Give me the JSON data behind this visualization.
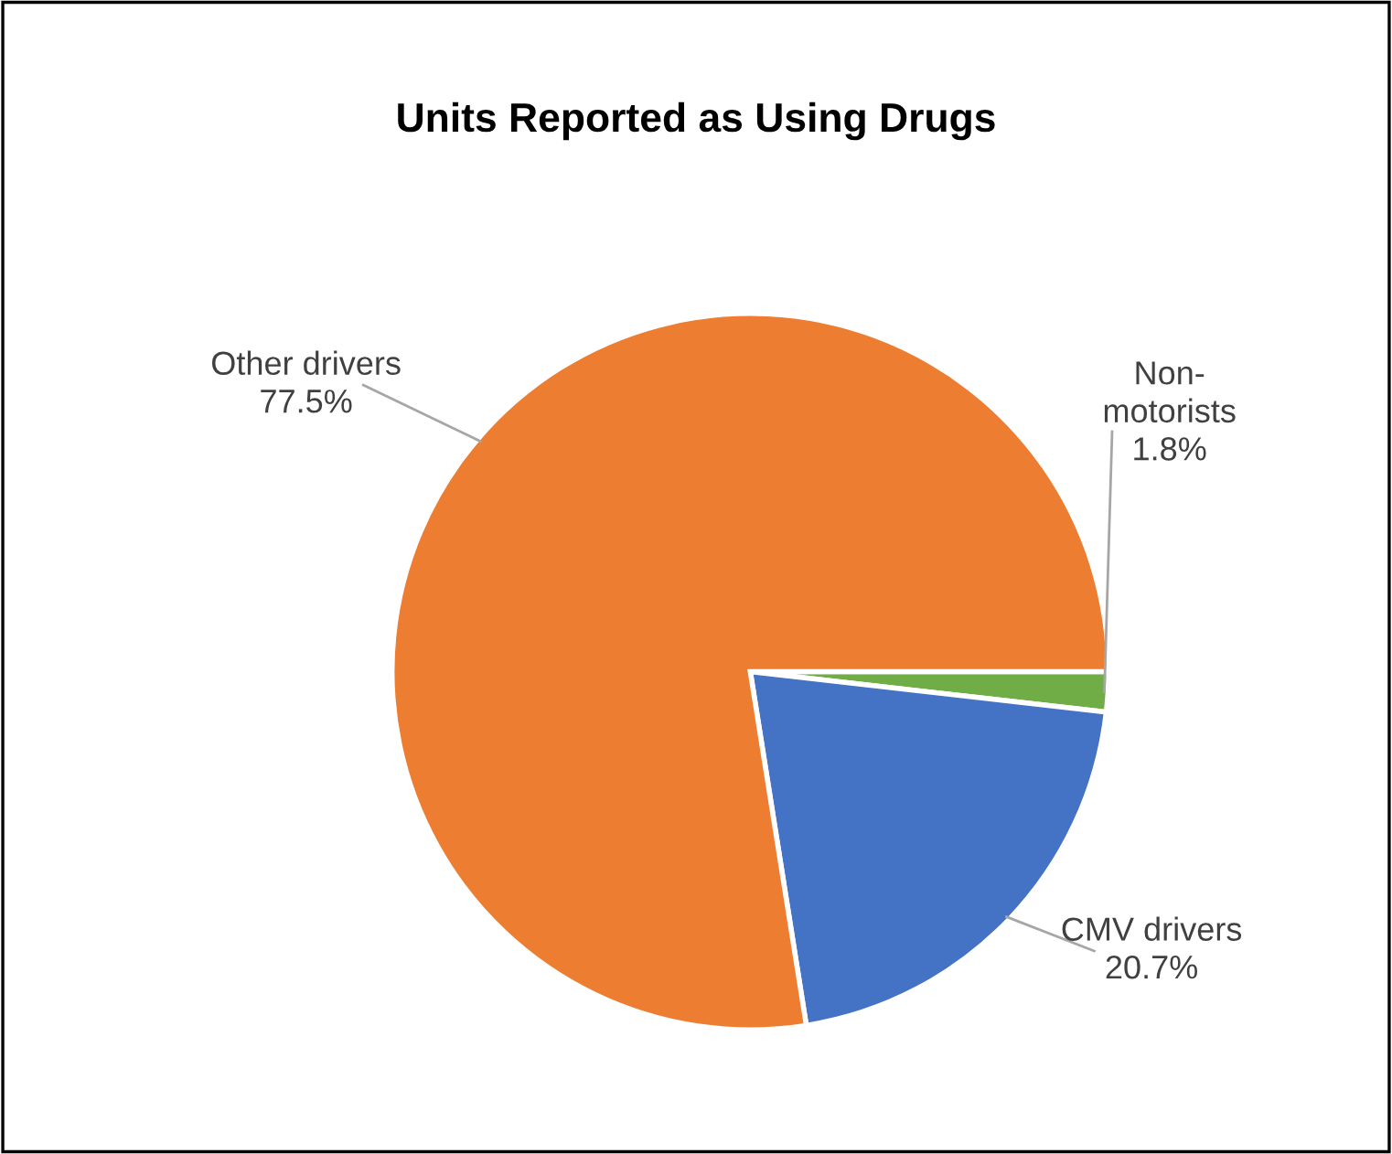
{
  "chart_data": {
    "type": "pie",
    "title": "Units Reported as Using Drugs",
    "categories": [
      "Non-motorists",
      "CMV drivers",
      "Other drivers"
    ],
    "values": [
      1.8,
      20.7,
      77.5
    ],
    "colors": [
      "#70ad47",
      "#4472c4",
      "#ed7d31"
    ],
    "value_labels": [
      "1.8%",
      "20.7%",
      "77.5%"
    ],
    "legend": false
  }
}
